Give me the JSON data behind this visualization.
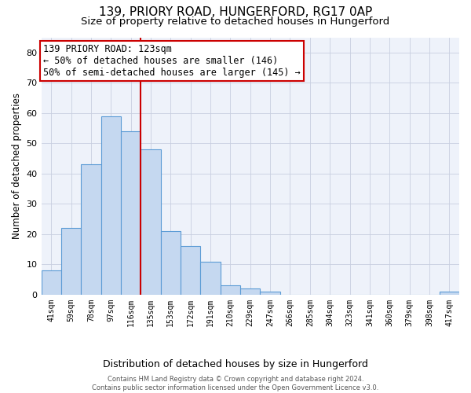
{
  "title1": "139, PRIORY ROAD, HUNGERFORD, RG17 0AP",
  "title2": "Size of property relative to detached houses in Hungerford",
  "xlabel": "Distribution of detached houses by size in Hungerford",
  "ylabel": "Number of detached properties",
  "footer1": "Contains HM Land Registry data © Crown copyright and database right 2024.",
  "footer2": "Contains public sector information licensed under the Open Government Licence v3.0.",
  "bar_labels": [
    "41sqm",
    "59sqm",
    "78sqm",
    "97sqm",
    "116sqm",
    "135sqm",
    "153sqm",
    "172sqm",
    "191sqm",
    "210sqm",
    "229sqm",
    "247sqm",
    "266sqm",
    "285sqm",
    "304sqm",
    "323sqm",
    "341sqm",
    "360sqm",
    "379sqm",
    "398sqm",
    "417sqm"
  ],
  "bar_values": [
    8,
    22,
    43,
    59,
    54,
    48,
    21,
    16,
    11,
    3,
    2,
    1,
    0,
    0,
    0,
    0,
    0,
    0,
    0,
    0,
    1
  ],
  "bar_color": "#c5d8f0",
  "bar_edge_color": "#5b9bd5",
  "vline_x": 4.5,
  "vline_color": "#cc0000",
  "annotation_line1": "139 PRIORY ROAD: 123sqm",
  "annotation_line2": "← 50% of detached houses are smaller (146)",
  "annotation_line3": "50% of semi-detached houses are larger (145) →",
  "annotation_box_color": "#ffffff",
  "annotation_box_edge": "#cc0000",
  "ylim": [
    0,
    85
  ],
  "yticks": [
    0,
    10,
    20,
    30,
    40,
    50,
    60,
    70,
    80
  ],
  "grid_color": "#c8cfe0",
  "bg_color": "#eef2fa",
  "title1_fontsize": 11,
  "title2_fontsize": 9.5,
  "xlabel_fontsize": 9,
  "ylabel_fontsize": 8.5,
  "ann_fontsize": 8.5
}
